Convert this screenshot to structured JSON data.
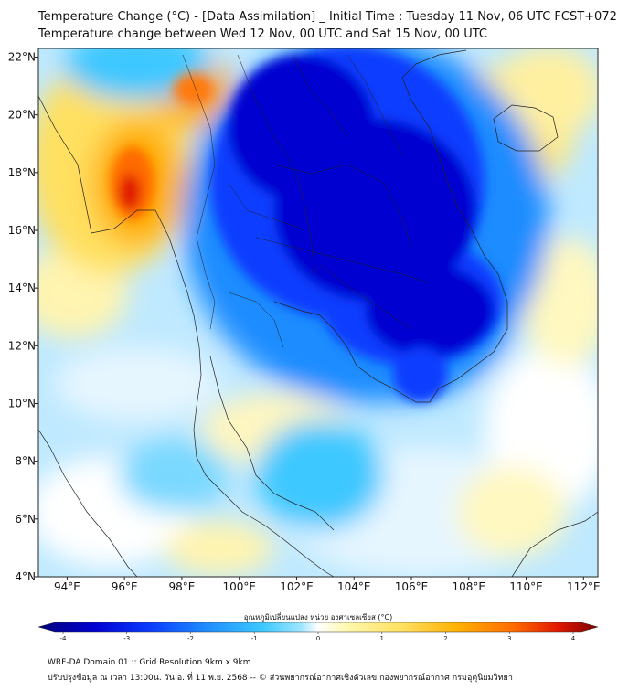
{
  "header": {
    "title_line1": "Temperature Change (°C) - [Data Assimilation] _ Initial Time : Tuesday 11 Nov, 06 UTC FCST+072",
    "title_line2": "Temperature change between Wed 12 Nov, 00 UTC and Sat 15 Nov, 00 UTC"
  },
  "map": {
    "lon_ticks": [
      "94°E",
      "96°E",
      "98°E",
      "100°E",
      "102°E",
      "104°E",
      "106°E",
      "108°E",
      "110°E",
      "112°E"
    ],
    "lat_ticks": [
      "22°N",
      "20°N",
      "18°N",
      "16°N",
      "14°N",
      "12°N",
      "10°N",
      "8°N",
      "6°N",
      "4°N"
    ],
    "lon_range": [
      93,
      112.5
    ],
    "lat_range": [
      4,
      22.3
    ]
  },
  "colorbar": {
    "title": "อุณหภูมิเปลี่ยนแปลง หน่วย องศาเซลเซียส (°C)",
    "ticks": [
      "-4",
      "-3",
      "-2",
      "-1",
      "0",
      "1",
      "2",
      "3",
      "4"
    ],
    "range": [
      -4,
      4
    ],
    "colors": [
      "#00007a",
      "#0000d0",
      "#0a3cff",
      "#1e8cff",
      "#3cc8ff",
      "#a0e6ff",
      "#ffffff",
      "#fff8b0",
      "#ffe060",
      "#ffb000",
      "#ff6a00",
      "#e01800",
      "#7a0000"
    ]
  },
  "footer": {
    "line1": "WRF-DA Domain 01 :: Grid Resolution 9km x 9km",
    "line2": "ปรับปรุงข้อมูล ณ เวลา 13:00น. วัน อ. ที่ 11 พ.ย. 2568 -- © ส่วนพยากรณ์อากาศเชิงตัวเลข กองพยากรณ์อากาศ กรมอุตุนิยมวิทยา"
  }
}
